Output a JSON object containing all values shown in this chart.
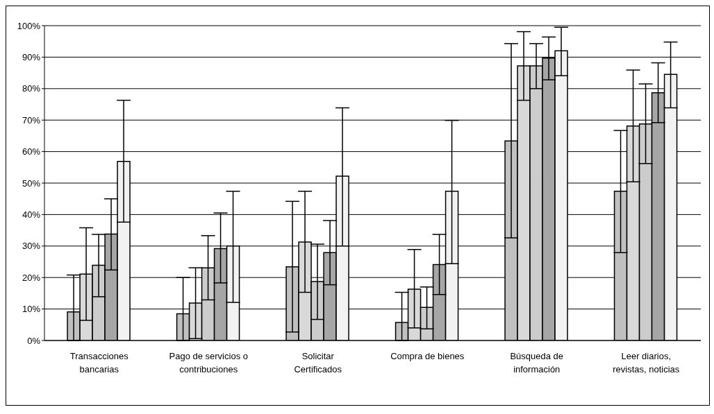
{
  "chart_data": {
    "type": "bar",
    "categories": [
      "Transacciones bancarias",
      "Pago de servicios o contribuciones",
      "Solicitar Certificados",
      "Compra de bienes",
      "Búsqueda de información",
      "Leer diarios, revistas, noticias"
    ],
    "series": [
      {
        "color": "#c0c0c0",
        "values": [
          9.1,
          8.5,
          23.4,
          5.7,
          63.4,
          47.4
        ],
        "errors": [
          [
            0,
            20.8
          ],
          [
            0,
            20.0
          ],
          [
            2.7,
            44.2
          ],
          [
            0,
            15.3
          ],
          [
            32.6,
            94.3
          ],
          [
            27.9,
            66.7
          ]
        ]
      },
      {
        "color": "#d9d9d9",
        "values": [
          21.1,
          11.9,
          31.3,
          16.3,
          87.2,
          68.1
        ],
        "errors": [
          [
            6.4,
            35.8
          ],
          [
            0.6,
            23.1
          ],
          [
            15.3,
            47.4
          ],
          [
            4.0,
            28.9
          ],
          [
            76.3,
            98.1
          ],
          [
            50.4,
            85.9
          ]
        ]
      },
      {
        "color": "#cccccc",
        "values": [
          23.9,
          23.1,
          18.7,
          10.5,
          87.2,
          68.8
        ],
        "errors": [
          [
            13.9,
            33.7
          ],
          [
            12.9,
            33.3
          ],
          [
            6.7,
            30.6
          ],
          [
            3.7,
            17.0
          ],
          [
            80.0,
            94.3
          ],
          [
            56.2,
            81.5
          ]
        ]
      },
      {
        "color": "#a6a6a6",
        "values": [
          33.8,
          29.2,
          27.9,
          24.1,
          89.7,
          78.7
        ],
        "errors": [
          [
            22.4,
            45.0
          ],
          [
            18.3,
            40.5
          ],
          [
            17.7,
            38.1
          ],
          [
            14.6,
            33.7
          ],
          [
            82.8,
            96.4
          ],
          [
            69.2,
            88.2
          ]
        ]
      },
      {
        "color": "#f2f2f2",
        "values": [
          56.9,
          30.0,
          52.2,
          47.4,
          92.0,
          84.5
        ],
        "errors": [
          [
            37.6,
            76.3
          ],
          [
            12.1,
            47.4
          ],
          [
            30.0,
            73.9
          ],
          [
            24.4,
            69.9
          ],
          [
            84.1,
            99.5
          ],
          [
            73.9,
            94.8
          ]
        ]
      }
    ],
    "ylim": [
      0,
      100
    ],
    "yticks": [
      {
        "value": 0,
        "label": "0%"
      },
      {
        "value": 10,
        "label": "10%"
      },
      {
        "value": 20,
        "label": "20%"
      },
      {
        "value": 30,
        "label": "30%"
      },
      {
        "value": 40,
        "label": "40%"
      },
      {
        "value": 50,
        "label": "50%"
      },
      {
        "value": 60,
        "label": "60%"
      },
      {
        "value": 70,
        "label": "70%"
      },
      {
        "value": 80,
        "label": "80%"
      },
      {
        "value": 90,
        "label": "90%"
      },
      {
        "value": 100,
        "label": "100%"
      }
    ],
    "grid": "y",
    "legend": false
  }
}
